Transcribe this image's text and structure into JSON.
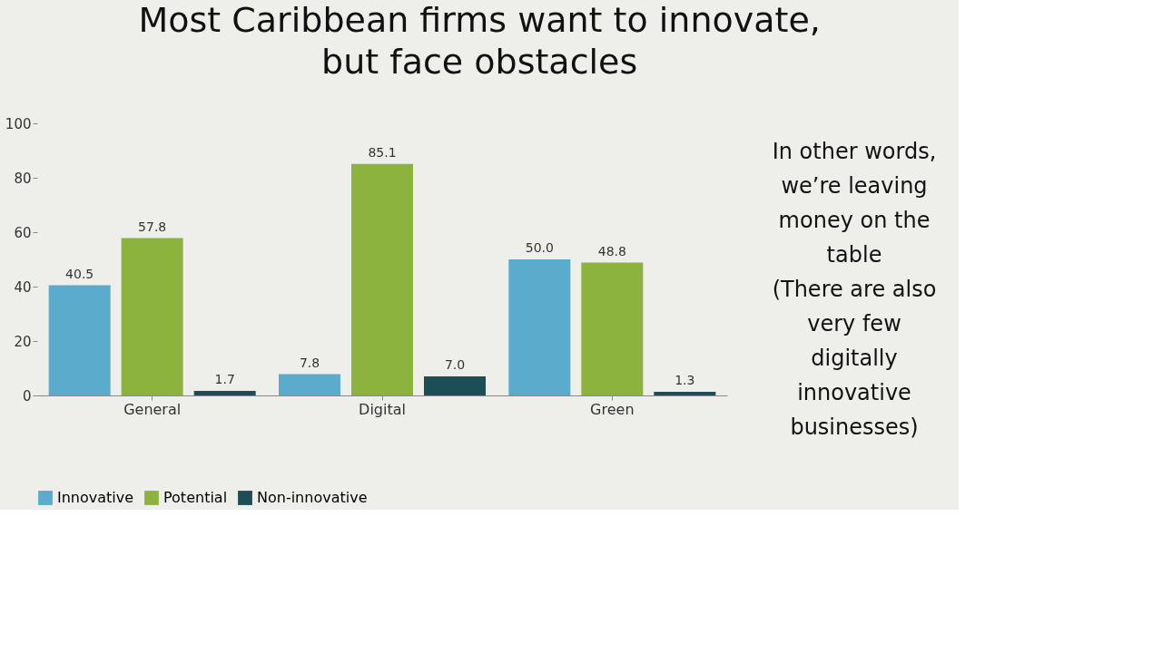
{
  "chart_data": {
    "type": "bar",
    "title": "Most Caribbean firms want to innovate, but face obstacles",
    "categories": [
      "General",
      "Digital",
      "Green"
    ],
    "series": [
      {
        "name": "Innovative",
        "color": "#5aabcc",
        "values": [
          40.5,
          7.8,
          50.0
        ]
      },
      {
        "name": "Potential",
        "color": "#8db33f",
        "values": [
          57.8,
          85.1,
          48.8
        ]
      },
      {
        "name": "Non-innovative",
        "color": "#1d4e56",
        "values": [
          1.7,
          7.0,
          1.3
        ]
      }
    ],
    "ylim": [
      0,
      100
    ],
    "yticks": [
      0,
      20,
      40,
      60,
      80,
      100
    ],
    "grid": false,
    "legend": "bottom",
    "value_labels": [
      [
        "40.5",
        "7.8",
        "50.0"
      ],
      [
        "57.8",
        "85.1",
        "48.8"
      ],
      [
        "1.7",
        "7.0",
        "1.3"
      ]
    ],
    "annotations": [
      "In other words, we’re leaving money on the table",
      "(There are also very few digitally innovative businesses)"
    ]
  }
}
